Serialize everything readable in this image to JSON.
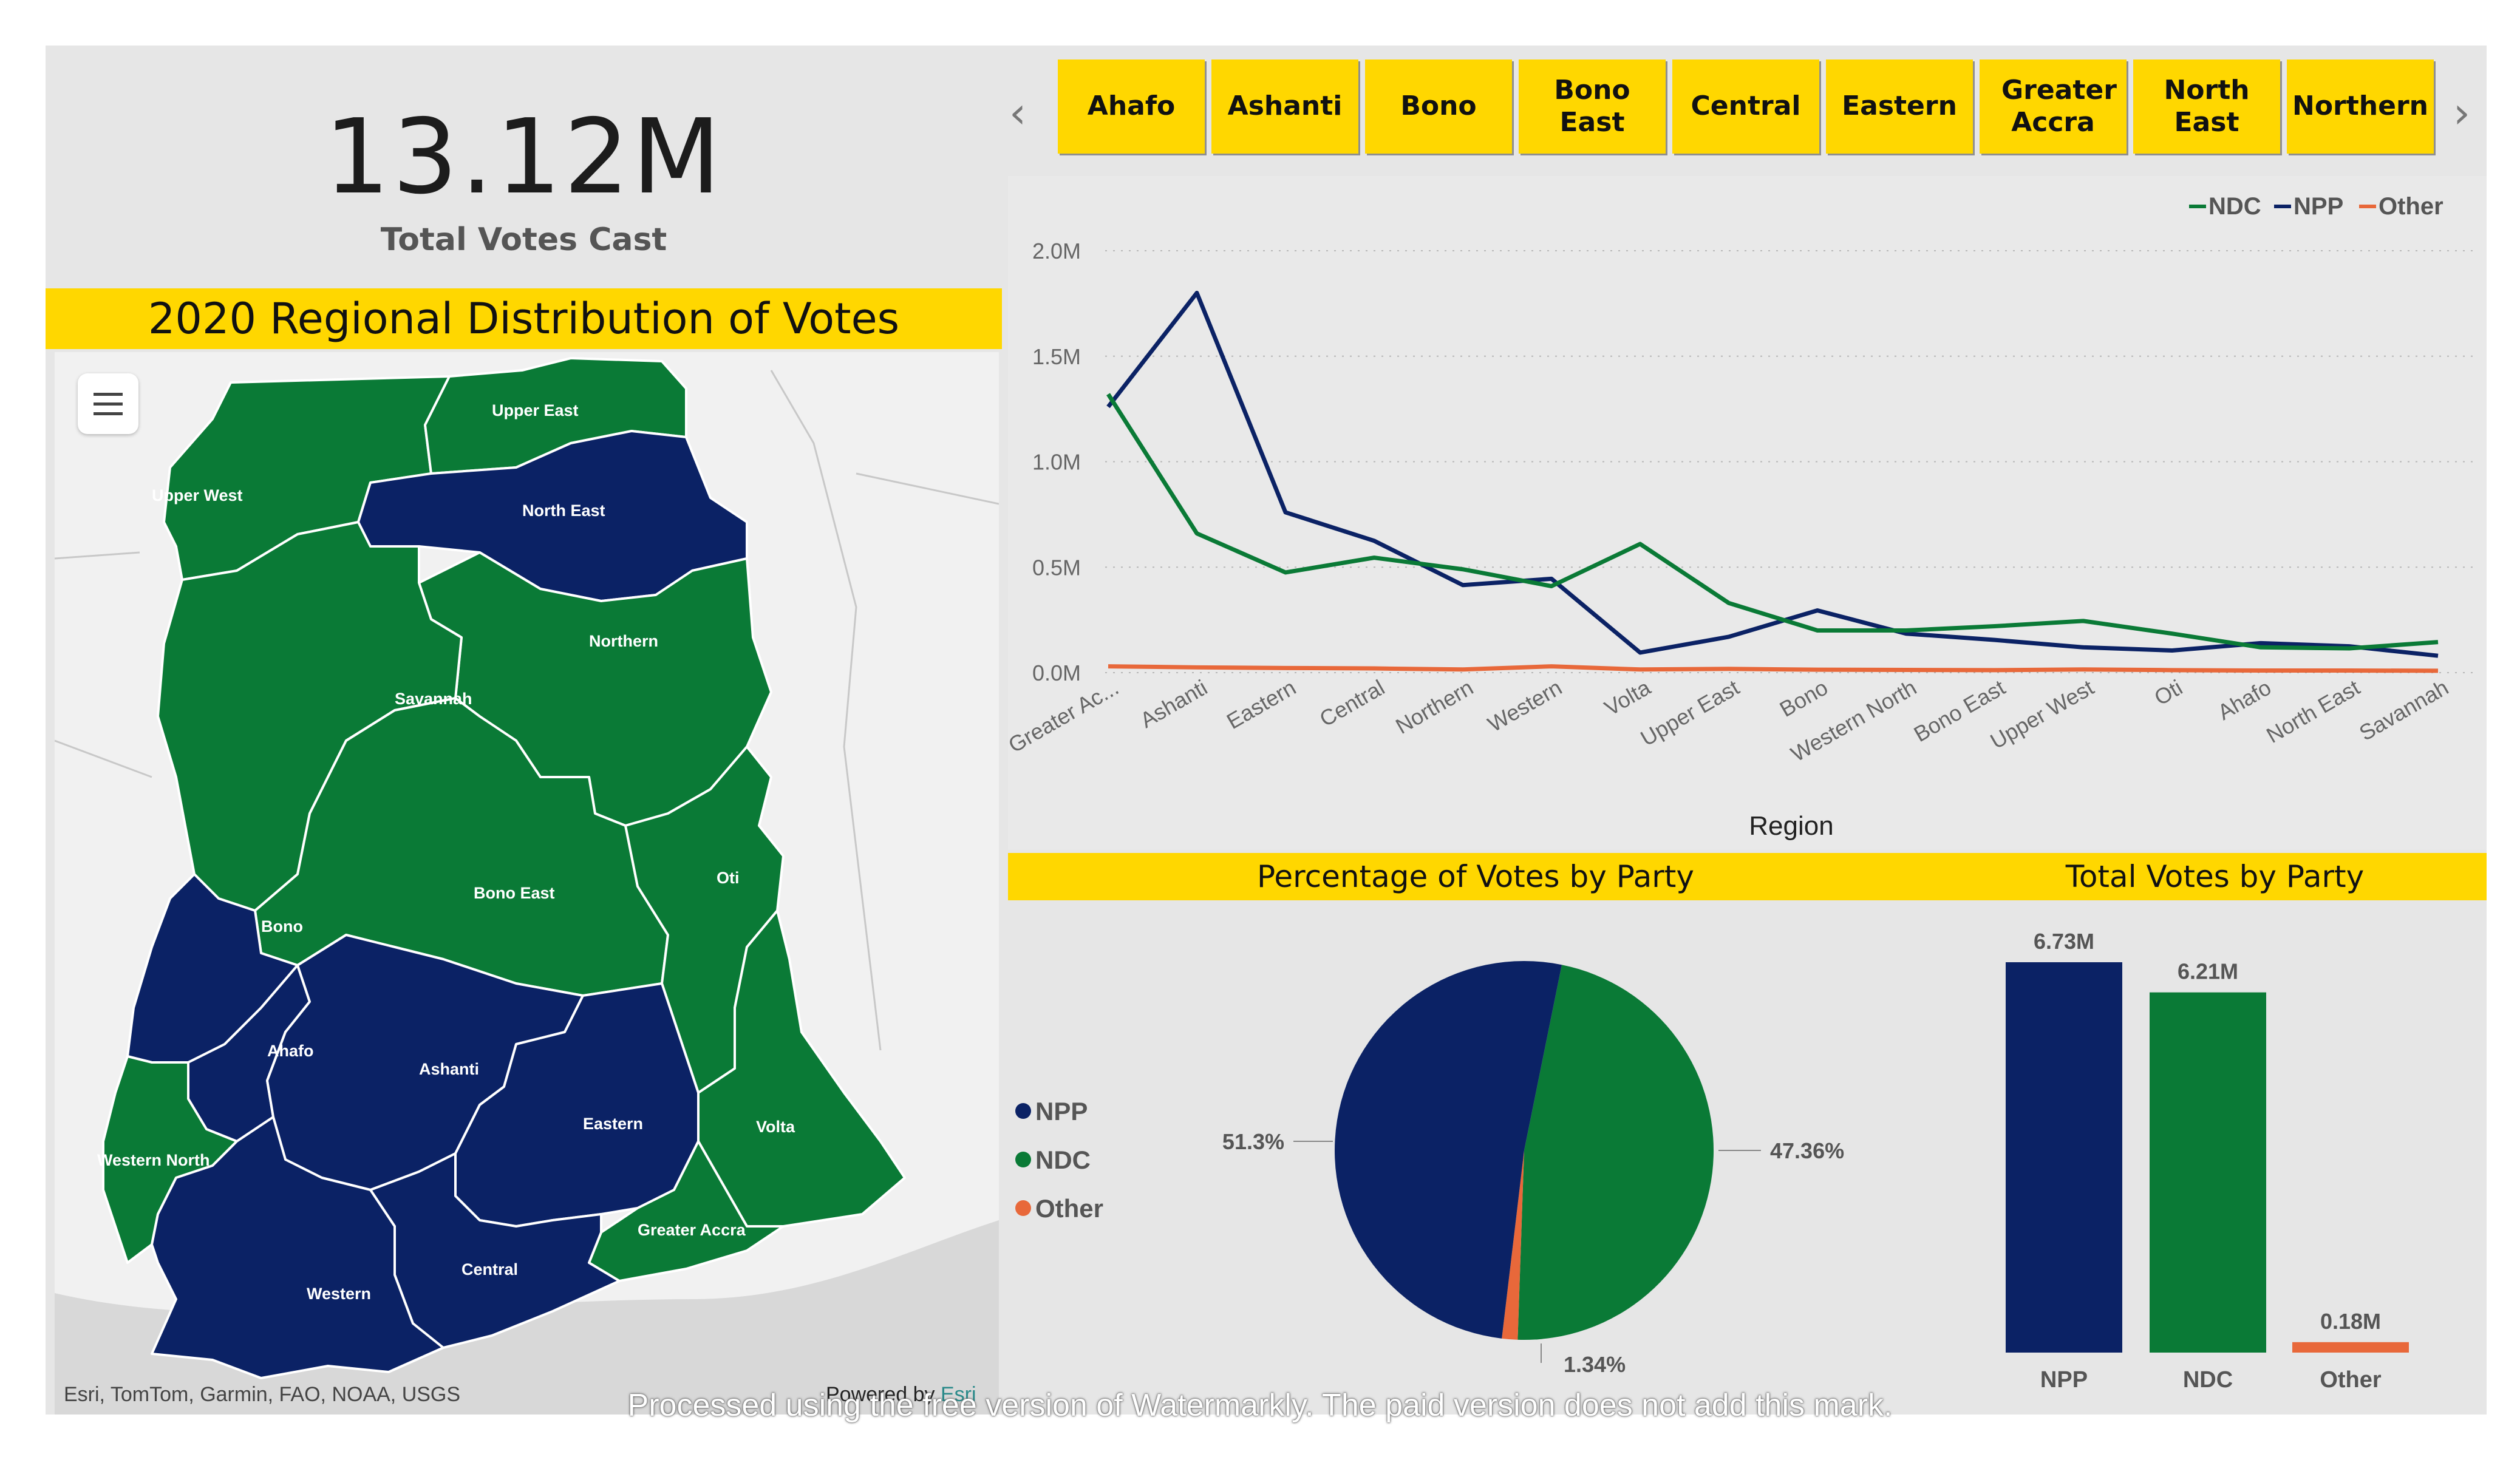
{
  "kpi": {
    "value": "13.12M",
    "label": "Total Votes Cast"
  },
  "map": {
    "title": "2020 Regional Distribution of Votes",
    "attribution": "Esri, TomTom, Garmin, FAO, NOAA, USGS",
    "powered_by": "Powered by",
    "powered_brand": "Esri",
    "menu_icon": "hamburger-menu-icon",
    "colors": {
      "NPP": "#0b2265",
      "NDC": "#0a7a36",
      "border": "#ffffff",
      "background": "#d9d9d9"
    },
    "regions": [
      {
        "name": "Upper West",
        "winner": "NDC"
      },
      {
        "name": "Upper East",
        "winner": "NDC"
      },
      {
        "name": "North East",
        "winner": "NPP"
      },
      {
        "name": "Northern",
        "winner": "NDC"
      },
      {
        "name": "Savannah",
        "winner": "NDC"
      },
      {
        "name": "Bono East",
        "winner": "NDC"
      },
      {
        "name": "Oti",
        "winner": "NDC"
      },
      {
        "name": "Bono",
        "winner": "NPP"
      },
      {
        "name": "Ahafo",
        "winner": "NPP"
      },
      {
        "name": "Ashanti",
        "winner": "NPP"
      },
      {
        "name": "Eastern",
        "winner": "NPP"
      },
      {
        "name": "Volta",
        "winner": "NDC"
      },
      {
        "name": "Western North",
        "winner": "NDC"
      },
      {
        "name": "Greater Accra",
        "winner": "NDC"
      },
      {
        "name": "Central",
        "winner": "NPP"
      },
      {
        "name": "Western",
        "winner": "NPP"
      }
    ]
  },
  "slicer": {
    "items": [
      "Ahafo",
      "Ashanti",
      "Bono",
      "Bono East",
      "Central",
      "Eastern",
      "Greater Accra",
      "North East",
      "Northern"
    ],
    "prev_icon": "chevron-left-icon",
    "next_icon": "chevron-right-icon"
  },
  "chart_data": [
    {
      "type": "line",
      "xlabel": "Region",
      "ylabel": "",
      "ylim": [
        0,
        2000000
      ],
      "yticks": [
        "0.0M",
        "0.5M",
        "1.0M",
        "1.5M",
        "2.0M"
      ],
      "grid": true,
      "legend_position": "top-right",
      "categories": [
        "Greater Ac...",
        "Ashanti",
        "Eastern",
        "Central",
        "Northern",
        "Western",
        "Volta",
        "Upper East",
        "Bono",
        "Western North",
        "Bono East",
        "Upper West",
        "Oti",
        "Ahafo",
        "North East",
        "Savannah"
      ],
      "series": [
        {
          "name": "NDC",
          "color": "#0a7a36",
          "values": [
            1320000,
            660000,
            475000,
            545000,
            490000,
            410000,
            610000,
            330000,
            200000,
            200000,
            220000,
            245000,
            185000,
            120000,
            115000,
            145000
          ]
        },
        {
          "name": "NPP",
          "color": "#0b2265",
          "values": [
            1260000,
            1800000,
            760000,
            625000,
            415000,
            445000,
            95000,
            170000,
            295000,
            185000,
            155000,
            120000,
            105000,
            140000,
            125000,
            80000
          ]
        },
        {
          "name": "Other",
          "color": "#e8683a",
          "values": [
            30000,
            25000,
            22000,
            20000,
            15000,
            30000,
            15000,
            18000,
            14000,
            13000,
            12000,
            15000,
            12000,
            10000,
            10000,
            9000
          ]
        }
      ]
    },
    {
      "type": "pie",
      "title": "Percentage of Votes by Party",
      "legend_position": "left",
      "slices": [
        {
          "name": "NPP",
          "value": 51.3,
          "label": "51.3%",
          "color": "#0b2265"
        },
        {
          "name": "NDC",
          "value": 47.36,
          "label": "47.36%",
          "color": "#0a7a36"
        },
        {
          "name": "Other",
          "value": 1.34,
          "label": "1.34%",
          "color": "#e8683a"
        }
      ]
    },
    {
      "type": "bar",
      "title": "Total Votes by Party",
      "categories": [
        "NPP",
        "NDC",
        "Other"
      ],
      "values": [
        6.73,
        6.21,
        0.18
      ],
      "labels": [
        "6.73M",
        "6.21M",
        "0.18M"
      ],
      "colors": [
        "#0b2265",
        "#0a7a36",
        "#e8683a"
      ],
      "ylim": [
        0,
        6.73
      ]
    }
  ],
  "watermark": "Processed using the free version of Watermarkly. The paid version does not add this mark."
}
